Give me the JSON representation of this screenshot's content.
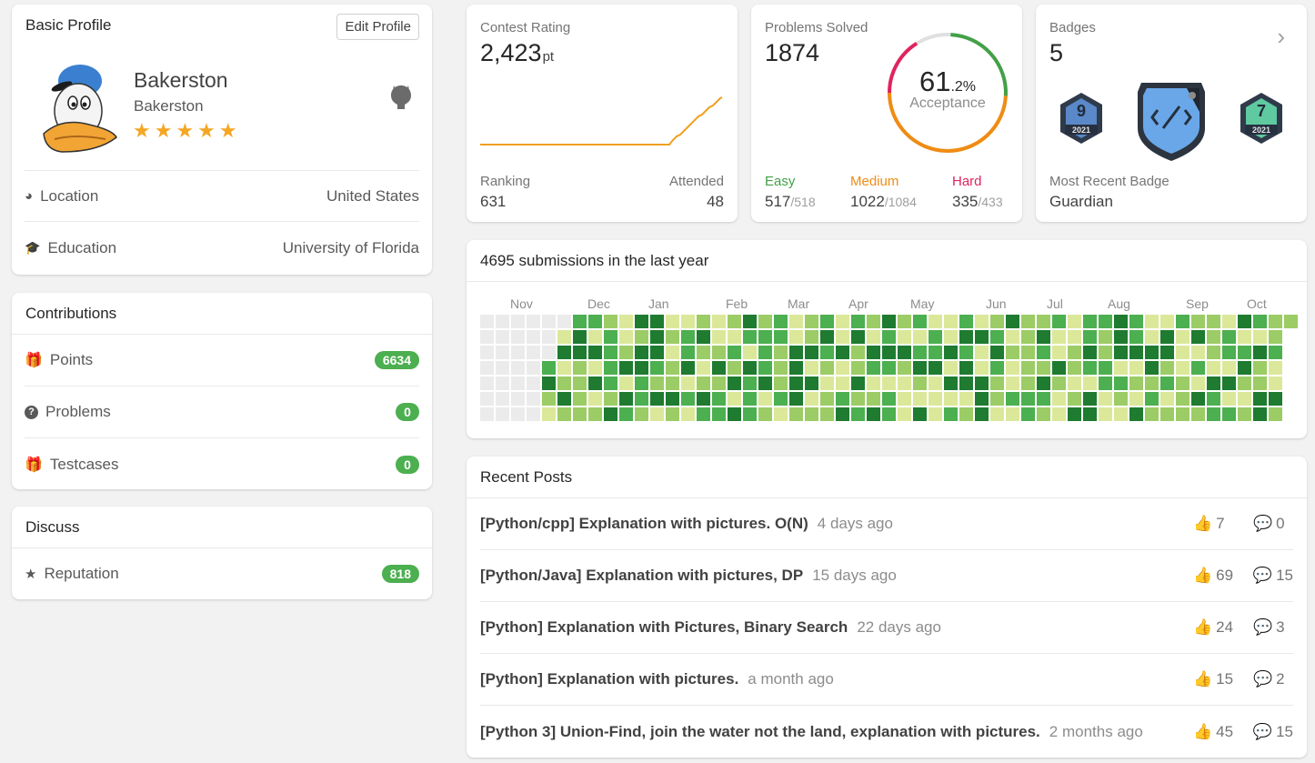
{
  "profile": {
    "header": "Basic Profile",
    "edit_label": "Edit Profile",
    "name": "Bakerston",
    "username": "Bakerston",
    "stars": "★★★★★",
    "location_label": "Location",
    "location_value": "United States",
    "education_label": "Education",
    "education_value": "University of Florida"
  },
  "contributions": {
    "header": "Contributions",
    "items": [
      {
        "label": "Points",
        "value": "6634"
      },
      {
        "label": "Problems",
        "value": "0"
      },
      {
        "label": "Testcases",
        "value": "0"
      }
    ]
  },
  "discuss": {
    "header": "Discuss",
    "reputation_label": "Reputation",
    "reputation_value": "818"
  },
  "contest": {
    "title": "Contest Rating",
    "rating": "2,423",
    "unit": "pt",
    "ranking_label": "Ranking",
    "ranking_value": "631",
    "attended_label": "Attended",
    "attended_value": "48",
    "line_color": "#f0a020"
  },
  "solved": {
    "title": "Problems Solved",
    "total": "1874",
    "acceptance_int": "61",
    "acceptance_dec": ".2%",
    "acceptance_label": "Acceptance",
    "easy_label": "Easy",
    "easy_solved": "517",
    "easy_total": "/518",
    "medium_label": "Medium",
    "medium_solved": "1022",
    "medium_total": "/1084",
    "hard_label": "Hard",
    "hard_solved": "335",
    "hard_total": "/433",
    "colors": {
      "easy": "#43a047",
      "medium": "#ef8c12",
      "hard": "#e0245e"
    }
  },
  "badges": {
    "title": "Badges",
    "count": "5",
    "recent_label": "Most Recent Badge",
    "recent_name": "Guardian",
    "left_badge_number": "9",
    "left_badge_year": "2021",
    "right_badge_number": "7",
    "right_badge_year": "2021"
  },
  "submissions": {
    "header": "4695 submissions in the last year",
    "months": [
      "Nov",
      "Dec",
      "Jan",
      "Feb",
      "Mar",
      "Apr",
      "May",
      "Jun",
      "Jul",
      "Aug",
      "Sep",
      "Oct"
    ],
    "colors": [
      "#ebebeb",
      "#dbe89a",
      "#9ccc65",
      "#4caf50",
      "#1e7b30"
    ]
  },
  "posts": {
    "header": "Recent Posts",
    "items": [
      {
        "title": "[Python/cpp] Explanation with pictures. O(N)",
        "time": "4 days ago",
        "likes": "7",
        "comments": "0"
      },
      {
        "title": "[Python/Java] Explanation with pictures, DP",
        "time": "15 days ago",
        "likes": "69",
        "comments": "15"
      },
      {
        "title": "[Python] Explanation with Pictures, Binary Search",
        "time": "22 days ago",
        "likes": "24",
        "comments": "3"
      },
      {
        "title": "[Python] Explanation with pictures.",
        "time": "a month ago",
        "likes": "15",
        "comments": "2"
      },
      {
        "title": "[Python 3] Union-Find, join the water not the land, explanation with pictures.",
        "time": "2 months ago",
        "likes": "45",
        "comments": "15"
      }
    ]
  }
}
